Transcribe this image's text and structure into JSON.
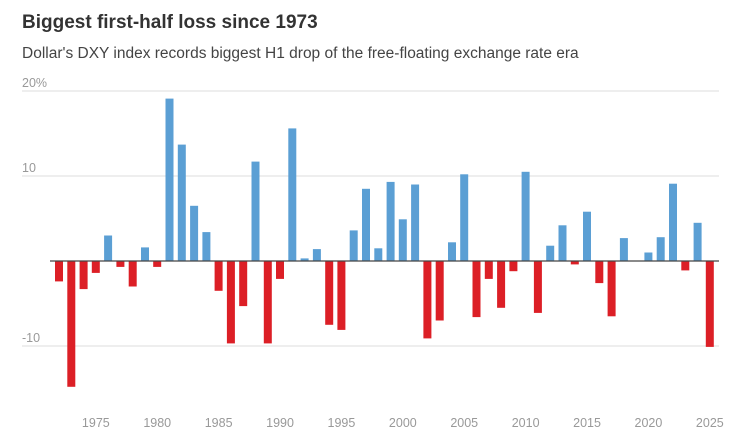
{
  "title": "Biggest first-half loss since 1973",
  "subtitle": "Dollar's DXY index records biggest H1 drop of the free-floating exchange rate era",
  "chart_data": {
    "type": "bar",
    "title": "Biggest first-half loss since 1973",
    "subtitle": "Dollar's DXY index records biggest H1 drop of the free-floating exchange rate era",
    "xlabel": "",
    "ylabel": "",
    "ylim": [
      -16,
      20
    ],
    "grid": true,
    "legend": "none",
    "y_ticks": [
      {
        "value": 20,
        "label": "20%"
      },
      {
        "value": 10,
        "label": "10"
      },
      {
        "value": -10,
        "label": "-10"
      }
    ],
    "x_ticks": [
      1975,
      1980,
      1985,
      1990,
      1995,
      2000,
      2005,
      2010,
      2015,
      2020,
      2025
    ],
    "x_tick_labels": [
      "1975",
      "1980",
      "1985",
      "1990",
      "1995",
      "2000",
      "2005",
      "2010",
      "2015",
      "2020",
      "2025"
    ],
    "positive_color": "#5b9fd4",
    "negative_color": "#dc1f26",
    "categories": [
      1972,
      1973,
      1974,
      1975,
      1976,
      1977,
      1978,
      1979,
      1980,
      1981,
      1982,
      1983,
      1984,
      1985,
      1986,
      1987,
      1988,
      1989,
      1990,
      1991,
      1992,
      1993,
      1994,
      1995,
      1996,
      1997,
      1998,
      1999,
      2000,
      2001,
      2002,
      2003,
      2004,
      2005,
      2006,
      2007,
      2008,
      2009,
      2010,
      2011,
      2012,
      2013,
      2014,
      2015,
      2016,
      2017,
      2018,
      2019,
      2020,
      2021,
      2022,
      2023,
      2024,
      2025
    ],
    "values": [
      -2.4,
      -14.8,
      -3.3,
      -1.4,
      3.0,
      -0.7,
      -3.0,
      1.6,
      -0.7,
      19.1,
      13.7,
      6.5,
      3.4,
      -3.5,
      -9.7,
      -5.3,
      11.7,
      -9.7,
      -2.1,
      15.6,
      0.3,
      1.4,
      -7.5,
      -8.1,
      3.6,
      8.5,
      1.5,
      9.3,
      4.9,
      9.0,
      -9.1,
      -7.0,
      2.2,
      10.2,
      -6.6,
      -2.1,
      -5.5,
      -1.2,
      10.5,
      -6.1,
      1.8,
      4.2,
      -0.4,
      5.8,
      -2.6,
      -6.5,
      2.7,
      0.0,
      1.0,
      2.8,
      9.1,
      -1.1,
      4.5,
      -10.1
    ]
  }
}
